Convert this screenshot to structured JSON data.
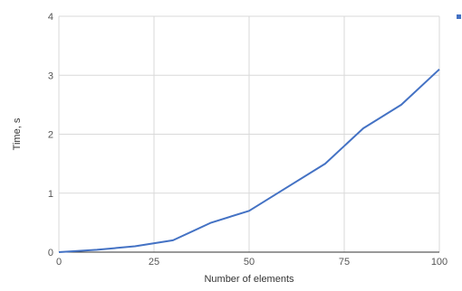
{
  "chart_data": {
    "type": "line",
    "title": "",
    "xlabel": "Number of elements",
    "ylabel": "Time, s",
    "xlim": [
      0,
      100
    ],
    "ylim": [
      0,
      4
    ],
    "xticks": [
      "0",
      "25",
      "50",
      "75",
      "100"
    ],
    "yticks": [
      "0",
      "1",
      "2",
      "3",
      "4"
    ],
    "grid": true,
    "legend": "top-right",
    "series": [
      {
        "color": "#4472c4",
        "x": [
          0,
          10,
          20,
          30,
          40,
          50,
          60,
          70,
          80,
          90,
          100
        ],
        "y": [
          0,
          0.04,
          0.1,
          0.2,
          0.5,
          0.7,
          1.1,
          1.5,
          2.1,
          2.5,
          3.1
        ]
      }
    ]
  }
}
